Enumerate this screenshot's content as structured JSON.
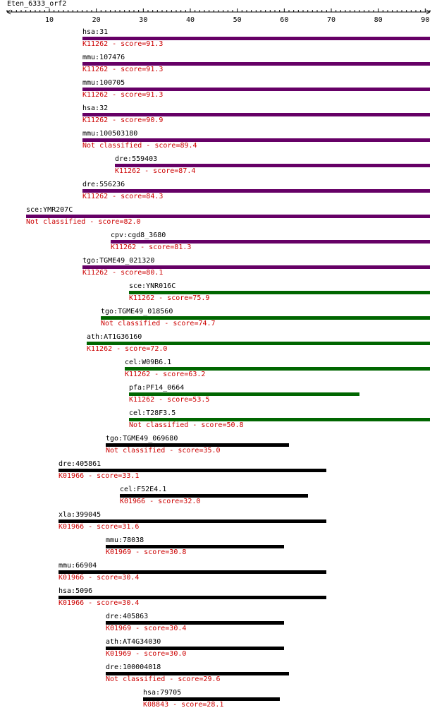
{
  "query": {
    "name": "Eten_6333_orf2",
    "length": 91
  },
  "ruler": {
    "ticks": [
      10,
      20,
      30,
      40,
      50,
      60,
      70,
      80,
      90
    ]
  },
  "colors": {
    "purple": "#660066",
    "green": "#006600",
    "black": "#000000",
    "score": "#cc0000"
  },
  "hits": [
    {
      "name": "hsa:31",
      "score": "K11262 - score=91.3",
      "start": 17,
      "end": 91,
      "color": "purple"
    },
    {
      "name": "mmu:107476",
      "score": "K11262 - score=91.3",
      "start": 17,
      "end": 91,
      "color": "purple"
    },
    {
      "name": "mmu:100705",
      "score": "K11262 - score=91.3",
      "start": 17,
      "end": 91,
      "color": "purple"
    },
    {
      "name": "hsa:32",
      "score": "K11262 - score=90.9",
      "start": 17,
      "end": 91,
      "color": "purple"
    },
    {
      "name": "mmu:100503180",
      "score": "Not classified - score=89.4",
      "start": 17,
      "end": 91,
      "color": "purple"
    },
    {
      "name": "dre:559403",
      "score": "K11262 - score=87.4",
      "start": 24,
      "end": 91,
      "color": "purple"
    },
    {
      "name": "dre:556236",
      "score": "K11262 - score=84.3",
      "start": 17,
      "end": 91,
      "color": "purple"
    },
    {
      "name": "sce:YMR207C",
      "score": "Not classified - score=82.0",
      "start": 5,
      "end": 91,
      "color": "purple"
    },
    {
      "name": "cpv:cgd8_3680",
      "score": "K11262 - score=81.3",
      "start": 23,
      "end": 91,
      "color": "purple"
    },
    {
      "name": "tgo:TGME49_021320",
      "score": "K11262 - score=80.1",
      "start": 17,
      "end": 91,
      "color": "purple"
    },
    {
      "name": "sce:YNR016C",
      "score": "K11262 - score=75.9",
      "start": 27,
      "end": 91,
      "color": "green"
    },
    {
      "name": "tgo:TGME49_018560",
      "score": "Not classified - score=74.7",
      "start": 21,
      "end": 91,
      "color": "green"
    },
    {
      "name": "ath:AT1G36160",
      "score": "K11262 - score=72.0",
      "start": 18,
      "end": 91,
      "color": "green"
    },
    {
      "name": "cel:W09B6.1",
      "score": "K11262 - score=63.2",
      "start": 26,
      "end": 91,
      "color": "green"
    },
    {
      "name": "pfa:PF14_0664",
      "score": "K11262 - score=53.5",
      "start": 27,
      "end": 76,
      "color": "green"
    },
    {
      "name": "cel:T28F3.5",
      "score": "Not classified - score=50.8",
      "start": 27,
      "end": 91,
      "color": "green"
    },
    {
      "name": "tgo:TGME49_069680",
      "score": "Not classified - score=35.0",
      "start": 22,
      "end": 61,
      "color": "black"
    },
    {
      "name": "dre:405861",
      "score": "K01966 - score=33.1",
      "start": 12,
      "end": 69,
      "color": "black"
    },
    {
      "name": "cel:F52E4.1",
      "score": "K01966 - score=32.0",
      "start": 25,
      "end": 65,
      "color": "black"
    },
    {
      "name": "xla:399045",
      "score": "K01966 - score=31.6",
      "start": 12,
      "end": 69,
      "color": "black"
    },
    {
      "name": "mmu:78038",
      "score": "K01969 - score=30.8",
      "start": 22,
      "end": 60,
      "color": "black"
    },
    {
      "name": "mmu:66904",
      "score": "K01966 - score=30.4",
      "start": 12,
      "end": 69,
      "color": "black"
    },
    {
      "name": "hsa:5096",
      "score": "K01966 - score=30.4",
      "start": 12,
      "end": 69,
      "color": "black"
    },
    {
      "name": "dre:405863",
      "score": "K01969 - score=30.4",
      "start": 22,
      "end": 60,
      "color": "black"
    },
    {
      "name": "ath:AT4G34030",
      "score": "K01969 - score=30.0",
      "start": 22,
      "end": 60,
      "color": "black"
    },
    {
      "name": "dre:100004018",
      "score": "Not classified - score=29.6",
      "start": 22,
      "end": 61,
      "color": "black"
    },
    {
      "name": "hsa:79705",
      "score": "K08843 - score=28.1",
      "start": 30,
      "end": 59,
      "color": "black"
    }
  ]
}
